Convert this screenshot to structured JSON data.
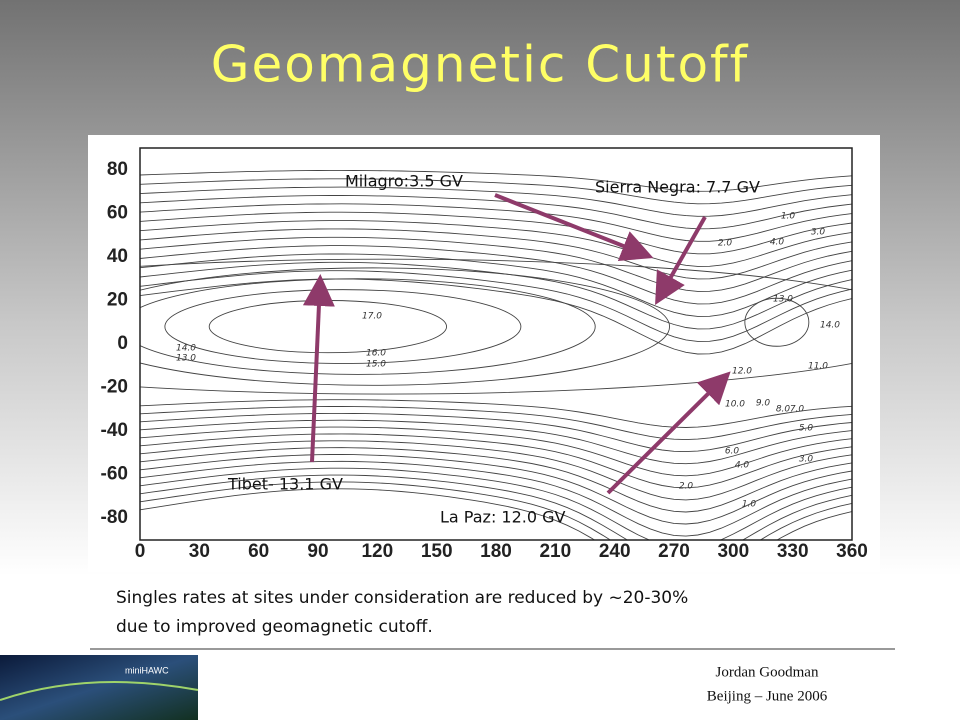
{
  "title": "Geomagnetic Cutoff",
  "map": {
    "y_tick_labels": [
      80,
      60,
      40,
      20,
      0,
      -20,
      -40,
      -60,
      -80
    ],
    "x_tick_labels": [
      0,
      30,
      60,
      90,
      120,
      150,
      180,
      210,
      240,
      270,
      300,
      330,
      360
    ],
    "contour_labels": [
      "1.0",
      "2.0",
      "3.0",
      "4.0",
      "13.0",
      "14.0",
      "17.0",
      "16.0",
      "15.0",
      "14.0",
      "13.0",
      "12.0",
      "11.0",
      "10.0",
      "9.0",
      "8.0",
      "7.0",
      "6.0",
      "5.0",
      "4.0",
      "3.0",
      "2.0",
      "1.0"
    ]
  },
  "annotations": [
    "Milagro:3.5 GV",
    "Sierra Negra: 7.7 GV",
    "Tibet- 13.1 GV",
    "La Paz: 12.0 GV"
  ],
  "caption": [
    "Singles rates at sites under consideration are reduced by ~20-30%",
    "due to improved geomagnetic cutoff."
  ],
  "footer": {
    "logo": "miniHAWC",
    "author": "Jordan Goodman",
    "event": "Beijing – June 2006"
  }
}
